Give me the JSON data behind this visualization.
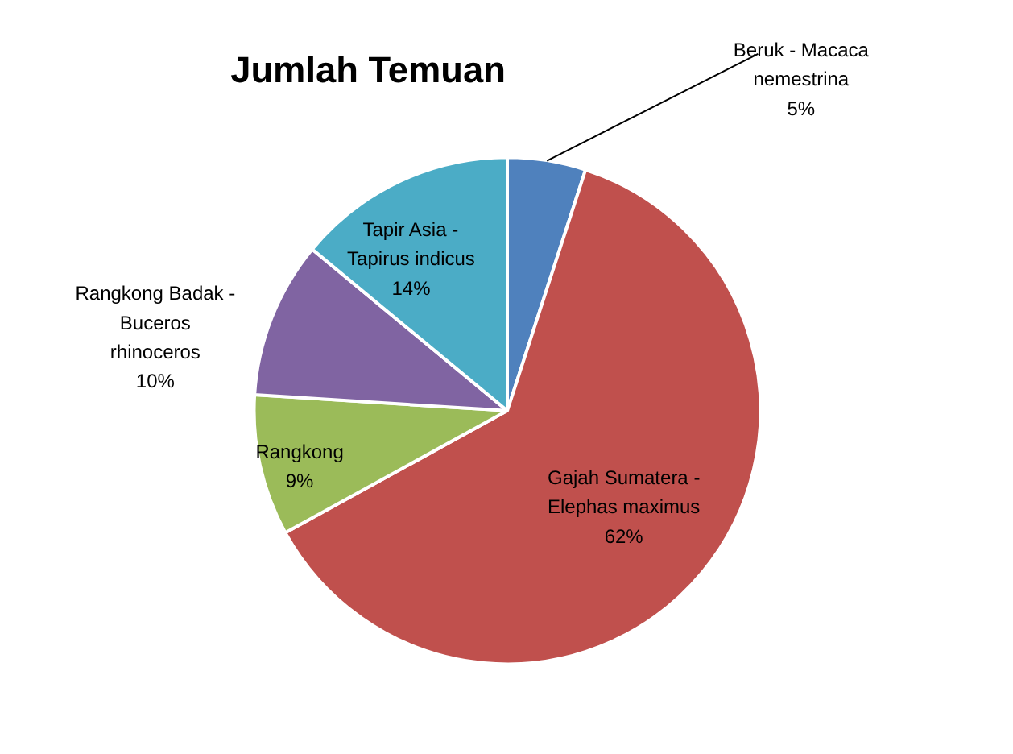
{
  "chart_data": {
    "type": "pie",
    "title": "Jumlah Temuan",
    "categories": [
      "Beruk - Macaca nemestrina",
      "Gajah Sumatera - Elephas maximus",
      "Rangkong",
      "Rangkong Badak - Buceros rhinoceros",
      "Tapir Asia - Tapirus indicus"
    ],
    "values": [
      5,
      62,
      9,
      10,
      14
    ],
    "value_labels": [
      "5%",
      "62%",
      "9%",
      "10%",
      "14%"
    ],
    "colors": [
      "#4f81bd",
      "#c0504d",
      "#9bbb59",
      "#8064a2",
      "#4bacc6"
    ]
  }
}
